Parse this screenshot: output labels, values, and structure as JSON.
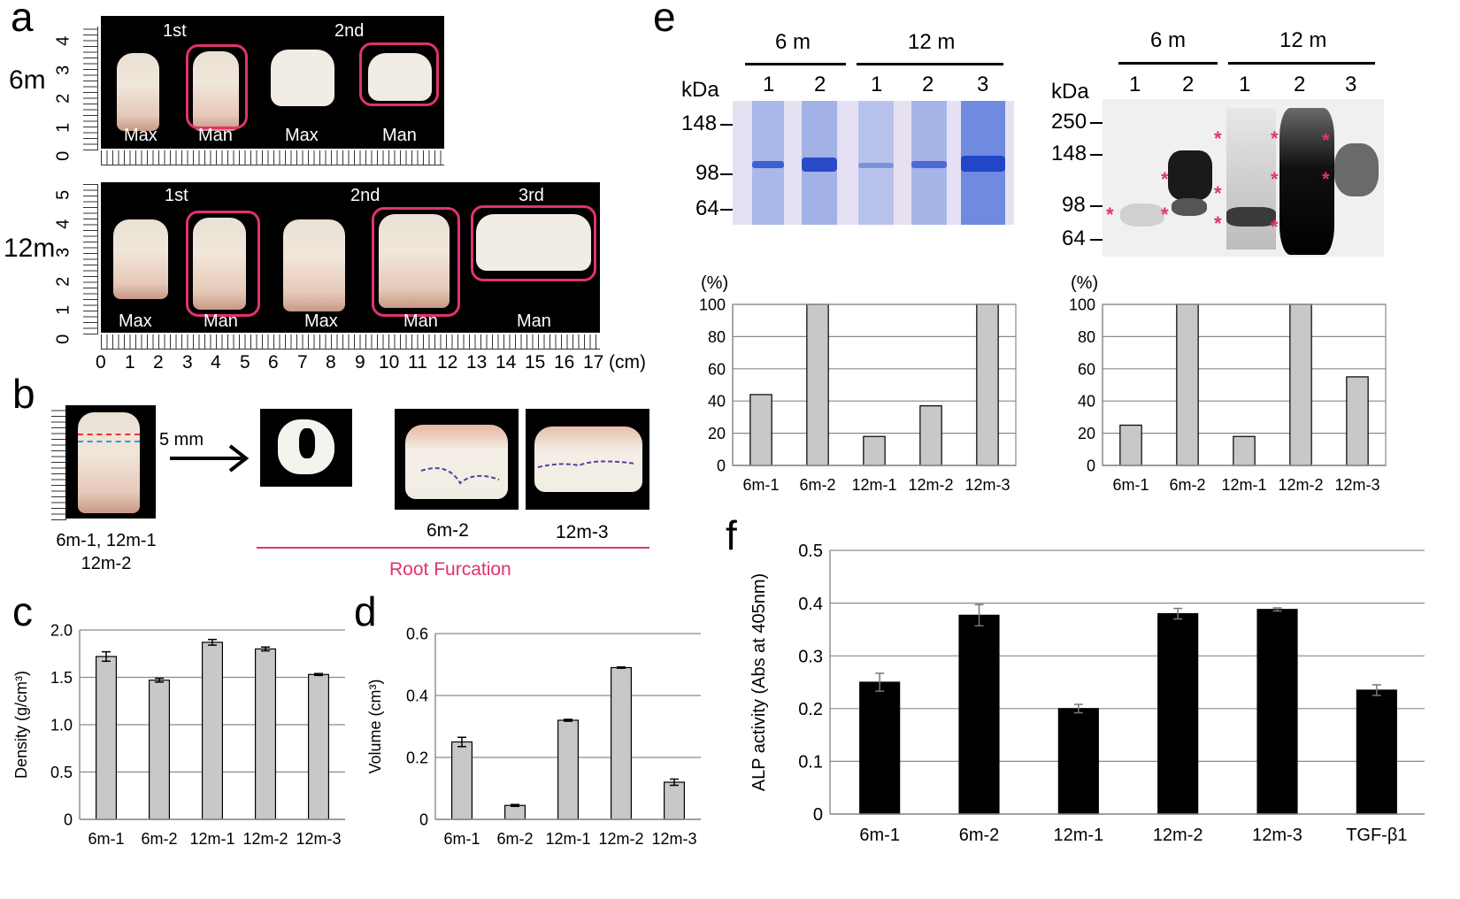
{
  "panels": {
    "a": {
      "label": "a",
      "row_6m": {
        "age": "6m",
        "scale_ticks": [
          "4",
          "3",
          "2",
          "1",
          "0"
        ],
        "headers": [
          "1st",
          "2nd"
        ],
        "teeth": [
          "Max",
          "Man",
          "Max",
          "Man"
        ]
      },
      "row_12m": {
        "age": "12m",
        "scale_ticks": [
          "5",
          "4",
          "3",
          "2",
          "1",
          "0"
        ],
        "headers": [
          "1st",
          "2nd",
          "3rd"
        ],
        "teeth": [
          "Max",
          "Man",
          "Max",
          "Man",
          "Man"
        ]
      },
      "x_ticks": [
        "0",
        "1",
        "2",
        "3",
        "4",
        "5",
        "6",
        "7",
        "8",
        "9",
        "10",
        "11",
        "12",
        "13",
        "14",
        "15",
        "16",
        "17"
      ],
      "x_unit": "(cm)"
    },
    "b": {
      "label": "b",
      "cut": "5 mm",
      "left_caption_1": "6m-1, 12m-1",
      "left_caption_2": "12m-2",
      "caption_6m2": "6m-2",
      "caption_12m3": "12m-3",
      "root_furcation": "Root Furcation"
    },
    "e": {
      "label": "e",
      "gel1": {
        "groups": [
          "6 m",
          "12 m"
        ],
        "kda": "kDa",
        "lanes": [
          "1",
          "2",
          "1",
          "2",
          "3"
        ],
        "markers": [
          "148",
          "98",
          "64"
        ]
      },
      "gel2": {
        "groups": [
          "6 m",
          "12 m"
        ],
        "kda": "kDa",
        "lanes": [
          "1",
          "2",
          "1",
          "2",
          "3"
        ],
        "markers": [
          "250",
          "148",
          "98",
          "64"
        ],
        "star": "*"
      }
    },
    "f": {
      "label": "f"
    }
  },
  "chart_data": [
    {
      "id": "c",
      "type": "bar",
      "panel_label": "c",
      "categories": [
        "6m-1",
        "6m-2",
        "12m-1",
        "12m-2",
        "12m-3"
      ],
      "values": [
        1.72,
        1.47,
        1.87,
        1.8,
        1.53
      ],
      "errors": [
        0.05,
        0.02,
        0.03,
        0.02,
        0.01
      ],
      "ylabel": "Density (g/cm³)",
      "ylim": [
        0,
        2.0
      ],
      "yticks": [
        "0",
        "0.5",
        "1.0",
        "1.5",
        "2.0"
      ],
      "bar_color": "#c8c8c8"
    },
    {
      "id": "d",
      "type": "bar",
      "panel_label": "d",
      "categories": [
        "6m-1",
        "6m-2",
        "12m-1",
        "12m-2",
        "12m-3"
      ],
      "values": [
        0.25,
        0.045,
        0.32,
        0.49,
        0.12
      ],
      "errors": [
        0.015,
        0.003,
        0.003,
        0.002,
        0.01
      ],
      "ylabel": "Volume (cm³)",
      "ylim": [
        0,
        0.6
      ],
      "yticks": [
        "0",
        "0.2",
        "0.4",
        "0.6"
      ],
      "bar_color": "#c8c8c8"
    },
    {
      "id": "e1",
      "type": "bar",
      "categories": [
        "6m-1",
        "6m-2",
        "12m-1",
        "12m-2",
        "12m-3"
      ],
      "values": [
        44,
        100,
        18,
        37,
        100
      ],
      "errors": [
        0,
        0,
        0,
        0,
        0
      ],
      "ylabel": "(%)",
      "ylim": [
        0,
        100
      ],
      "yticks": [
        "0",
        "20",
        "40",
        "60",
        "80",
        "100"
      ],
      "bar_color": "#c8c8c8"
    },
    {
      "id": "e2",
      "type": "bar",
      "categories": [
        "6m-1",
        "6m-2",
        "12m-1",
        "12m-2",
        "12m-3"
      ],
      "values": [
        25,
        100,
        18,
        100,
        55
      ],
      "errors": [
        0,
        0,
        0,
        0,
        0
      ],
      "ylabel": "(%)",
      "ylim": [
        0,
        100
      ],
      "yticks": [
        "0",
        "20",
        "40",
        "60",
        "80",
        "100"
      ],
      "bar_color": "#c8c8c8"
    },
    {
      "id": "f",
      "type": "bar",
      "categories": [
        "6m-1",
        "6m-2",
        "12m-1",
        "12m-2",
        "12m-3",
        "TGF-β1"
      ],
      "values": [
        0.25,
        0.377,
        0.2,
        0.38,
        0.388,
        0.235
      ],
      "errors": [
        0.017,
        0.02,
        0.008,
        0.01,
        0.003,
        0.01
      ],
      "ylabel": "ALP activity (Abs at 405nm)",
      "ylim": [
        0,
        0.5
      ],
      "yticks": [
        "0",
        "0.1",
        "0.2",
        "0.3",
        "0.4",
        "0.5"
      ],
      "bar_color": "#000000"
    }
  ],
  "colors": {
    "pink": "#e0336f",
    "gel_blue": "#4a6fd8",
    "bar_gray": "#c8c8c8"
  }
}
